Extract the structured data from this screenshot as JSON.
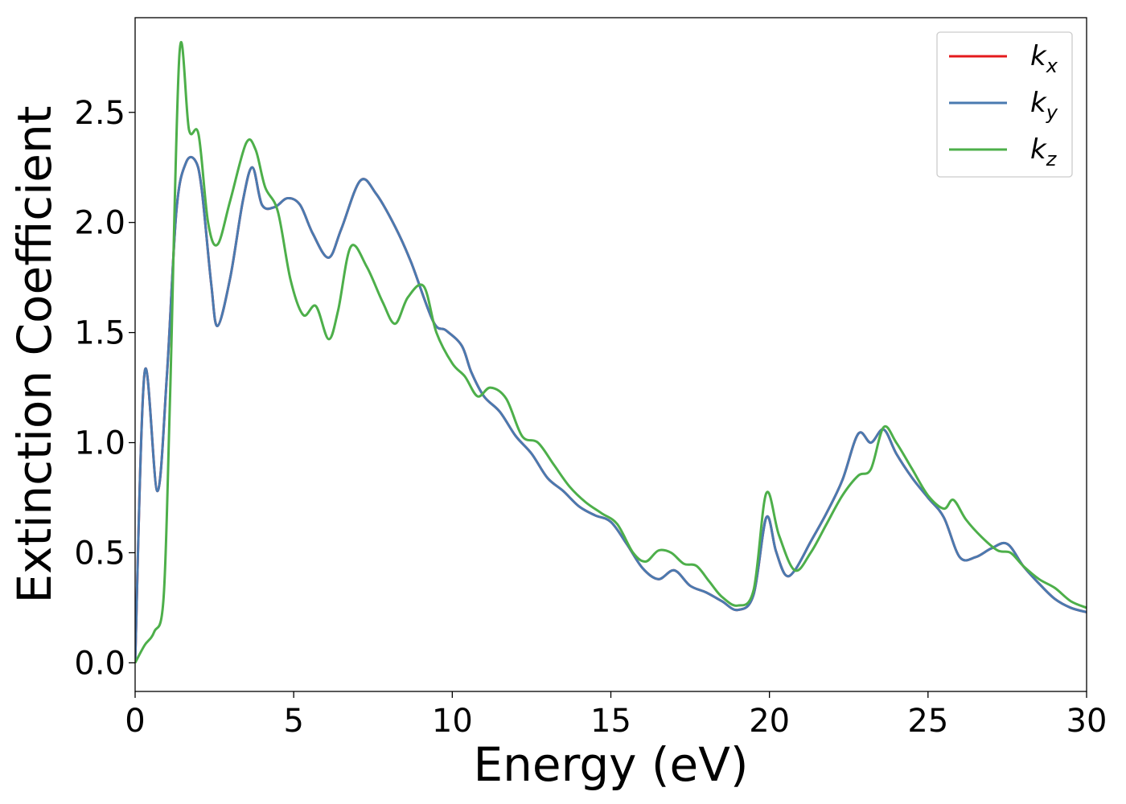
{
  "chart_data": {
    "type": "line",
    "xlabel": "Energy (eV)",
    "ylabel": "Extinction Coefficient",
    "xlim": [
      0,
      30
    ],
    "ylim": [
      -0.13,
      2.93
    ],
    "xticks": [
      0,
      5,
      10,
      15,
      20,
      25,
      30
    ],
    "xtick_labels": [
      "0",
      "5",
      "10",
      "15",
      "20",
      "25",
      "30"
    ],
    "yticks": [
      0.0,
      0.5,
      1.0,
      1.5,
      2.0,
      2.5
    ],
    "ytick_labels": [
      "0.0",
      "0.5",
      "1.0",
      "1.5",
      "2.0",
      "2.5"
    ],
    "grid": false,
    "legend_position": "top-right",
    "series": [
      {
        "name": "k_x",
        "label_main": "k",
        "label_sub": "x",
        "color": "#e41a1c",
        "x": [
          0,
          0.3,
          0.7,
          1.0,
          1.3,
          1.6,
          1.9,
          2.1,
          2.4,
          2.6,
          3.0,
          3.4,
          3.7,
          4.0,
          4.4,
          4.8,
          5.2,
          5.6,
          6.1,
          6.5,
          7.1,
          7.6,
          8.2,
          8.7,
          9.4,
          9.8,
          10.3,
          10.6,
          11.0,
          11.5,
          12.0,
          12.5,
          13.0,
          13.5,
          14.0,
          14.5,
          15.0,
          15.5,
          16.0,
          16.5,
          17.0,
          17.5,
          18.0,
          18.5,
          19.0,
          19.5,
          19.9,
          20.2,
          20.5,
          20.8,
          21.3,
          21.8,
          22.3,
          22.8,
          23.2,
          23.6,
          24.0,
          24.5,
          25.0,
          25.5,
          26.0,
          26.5,
          27.0,
          27.5,
          28.0,
          28.5,
          29.0,
          29.5,
          30.0
        ],
        "values": [
          0.0,
          1.32,
          0.78,
          1.3,
          2.05,
          2.27,
          2.28,
          2.15,
          1.72,
          1.53,
          1.75,
          2.1,
          2.25,
          2.08,
          2.07,
          2.11,
          2.08,
          1.95,
          1.84,
          1.97,
          2.19,
          2.13,
          1.98,
          1.82,
          1.55,
          1.51,
          1.44,
          1.32,
          1.21,
          1.14,
          1.03,
          0.95,
          0.84,
          0.78,
          0.71,
          0.67,
          0.64,
          0.54,
          0.43,
          0.38,
          0.42,
          0.35,
          0.32,
          0.28,
          0.24,
          0.31,
          0.66,
          0.51,
          0.4,
          0.42,
          0.55,
          0.68,
          0.83,
          1.04,
          1.0,
          1.06,
          0.95,
          0.84,
          0.75,
          0.66,
          0.48,
          0.48,
          0.52,
          0.54,
          0.44,
          0.36,
          0.29,
          0.25,
          0.23
        ]
      },
      {
        "name": "k_y",
        "label_main": "k",
        "label_sub": "y",
        "color": "#4a7ab0",
        "x": [
          0,
          0.3,
          0.7,
          1.0,
          1.3,
          1.6,
          1.9,
          2.1,
          2.4,
          2.6,
          3.0,
          3.4,
          3.7,
          4.0,
          4.4,
          4.8,
          5.2,
          5.6,
          6.1,
          6.5,
          7.1,
          7.6,
          8.2,
          8.7,
          9.4,
          9.8,
          10.3,
          10.6,
          11.0,
          11.5,
          12.0,
          12.5,
          13.0,
          13.5,
          14.0,
          14.5,
          15.0,
          15.5,
          16.0,
          16.5,
          17.0,
          17.5,
          18.0,
          18.5,
          19.0,
          19.5,
          19.9,
          20.2,
          20.5,
          20.8,
          21.3,
          21.8,
          22.3,
          22.8,
          23.2,
          23.6,
          24.0,
          24.5,
          25.0,
          25.5,
          26.0,
          26.5,
          27.0,
          27.5,
          28.0,
          28.5,
          29.0,
          29.5,
          30.0
        ],
        "values": [
          0.0,
          1.32,
          0.78,
          1.3,
          2.05,
          2.27,
          2.28,
          2.15,
          1.72,
          1.53,
          1.75,
          2.1,
          2.25,
          2.08,
          2.07,
          2.11,
          2.08,
          1.95,
          1.84,
          1.97,
          2.19,
          2.13,
          1.98,
          1.82,
          1.55,
          1.51,
          1.44,
          1.32,
          1.21,
          1.14,
          1.03,
          0.95,
          0.84,
          0.78,
          0.71,
          0.67,
          0.64,
          0.54,
          0.43,
          0.38,
          0.42,
          0.35,
          0.32,
          0.28,
          0.24,
          0.31,
          0.66,
          0.51,
          0.4,
          0.42,
          0.55,
          0.68,
          0.83,
          1.04,
          1.0,
          1.06,
          0.95,
          0.84,
          0.75,
          0.66,
          0.48,
          0.48,
          0.52,
          0.54,
          0.44,
          0.36,
          0.29,
          0.25,
          0.23
        ]
      },
      {
        "name": "k_z",
        "label_main": "k",
        "label_sub": "z",
        "color": "#4daf4a",
        "x": [
          0,
          0.3,
          0.6,
          0.9,
          1.1,
          1.4,
          1.7,
          2.0,
          2.3,
          2.6,
          3.0,
          3.5,
          3.8,
          4.1,
          4.5,
          4.9,
          5.3,
          5.7,
          6.1,
          6.4,
          6.8,
          7.3,
          7.8,
          8.2,
          8.6,
          9.1,
          9.5,
          10.0,
          10.4,
          10.8,
          11.2,
          11.7,
          12.2,
          12.7,
          13.2,
          13.7,
          14.2,
          14.7,
          15.2,
          15.7,
          16.1,
          16.5,
          16.9,
          17.3,
          17.7,
          18.1,
          18.5,
          19.0,
          19.5,
          19.9,
          20.3,
          20.8,
          21.3,
          21.8,
          22.3,
          22.8,
          23.2,
          23.6,
          24.0,
          24.5,
          25.0,
          25.5,
          25.8,
          26.2,
          26.7,
          27.2,
          27.6,
          28.0,
          28.5,
          29.0,
          29.5,
          30.0
        ],
        "values": [
          0.0,
          0.08,
          0.14,
          0.3,
          1.2,
          2.77,
          2.42,
          2.4,
          2.0,
          1.9,
          2.1,
          2.36,
          2.33,
          2.16,
          2.05,
          1.74,
          1.58,
          1.62,
          1.47,
          1.6,
          1.89,
          1.8,
          1.64,
          1.54,
          1.66,
          1.71,
          1.5,
          1.36,
          1.3,
          1.21,
          1.25,
          1.2,
          1.03,
          1.0,
          0.9,
          0.8,
          0.73,
          0.68,
          0.63,
          0.5,
          0.46,
          0.51,
          0.5,
          0.45,
          0.44,
          0.37,
          0.3,
          0.26,
          0.33,
          0.77,
          0.58,
          0.42,
          0.5,
          0.63,
          0.76,
          0.85,
          0.88,
          1.07,
          1.0,
          0.88,
          0.76,
          0.7,
          0.74,
          0.65,
          0.57,
          0.51,
          0.5,
          0.44,
          0.38,
          0.34,
          0.28,
          0.25
        ]
      }
    ]
  }
}
